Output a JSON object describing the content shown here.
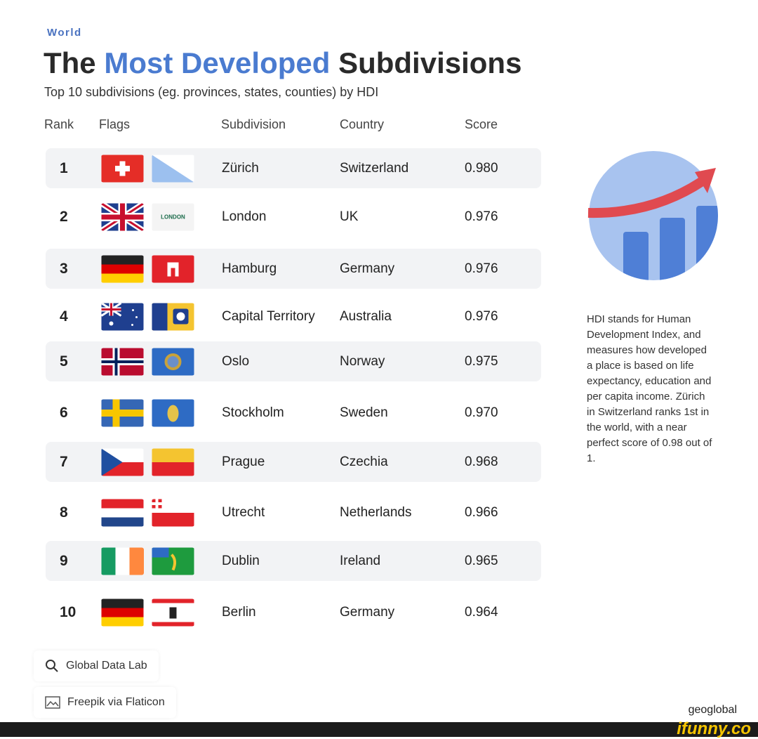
{
  "kicker": "World",
  "title": {
    "part1": "The ",
    "highlight": "Most Developed",
    "part2": " Subdivisions"
  },
  "subtitle": "Top 10 subdivisions (eg. provinces, states, counties) by HDI",
  "colors": {
    "accent": "#4a7bd0",
    "row_shade": "#f2f3f5"
  },
  "chart_data": {
    "type": "table",
    "columns": [
      "Rank",
      "Flags",
      "Subdivision",
      "Country",
      "Score"
    ],
    "rows": [
      {
        "rank": "1",
        "subdivision": "Zürich",
        "country": "Switzerland",
        "score": "0.980",
        "flags": [
          "switzerland-flag",
          "zurich-flag"
        ]
      },
      {
        "rank": "2",
        "subdivision": "London",
        "country": "UK",
        "score": "0.976",
        "flags": [
          "uk-flag",
          "london-flag"
        ]
      },
      {
        "rank": "3",
        "subdivision": "Hamburg",
        "country": "Germany",
        "score": "0.976",
        "flags": [
          "germany-flag",
          "hamburg-flag"
        ]
      },
      {
        "rank": "4",
        "subdivision": "Capital Territory",
        "country": "Australia",
        "score": "0.976",
        "flags": [
          "australia-flag",
          "act-flag"
        ]
      },
      {
        "rank": "5",
        "subdivision": "Oslo",
        "country": "Norway",
        "score": "0.975",
        "flags": [
          "norway-flag",
          "oslo-flag"
        ]
      },
      {
        "rank": "6",
        "subdivision": "Stockholm",
        "country": "Sweden",
        "score": "0.970",
        "flags": [
          "sweden-flag",
          "stockholm-flag"
        ]
      },
      {
        "rank": "7",
        "subdivision": "Prague",
        "country": "Czechia",
        "score": "0.968",
        "flags": [
          "czechia-flag",
          "prague-flag"
        ]
      },
      {
        "rank": "8",
        "subdivision": "Utrecht",
        "country": "Netherlands",
        "score": "0.966",
        "flags": [
          "netherlands-flag",
          "utrecht-flag"
        ]
      },
      {
        "rank": "9",
        "subdivision": "Dublin",
        "country": "Ireland",
        "score": "0.965",
        "flags": [
          "ireland-flag",
          "dublin-flag"
        ]
      },
      {
        "rank": "10",
        "subdivision": "Berlin",
        "country": "Germany",
        "score": "0.964",
        "flags": [
          "germany-flag",
          "berlin-flag"
        ]
      }
    ]
  },
  "london_logo_text": "LONDON",
  "side_note": "HDI stands for Human Development Index, and measures how developed a place is based on life expectancy, education and per capita income. Zürich in Switzerland ranks 1st in the world, with a near perfect score of 0.98 out of 1.",
  "sources": [
    {
      "icon": "search-icon",
      "label": "Global Data Lab"
    },
    {
      "icon": "image-icon",
      "label": "Freepik via Flaticon"
    }
  ],
  "brand": "geoglobal",
  "watermark": "ifunny.co"
}
